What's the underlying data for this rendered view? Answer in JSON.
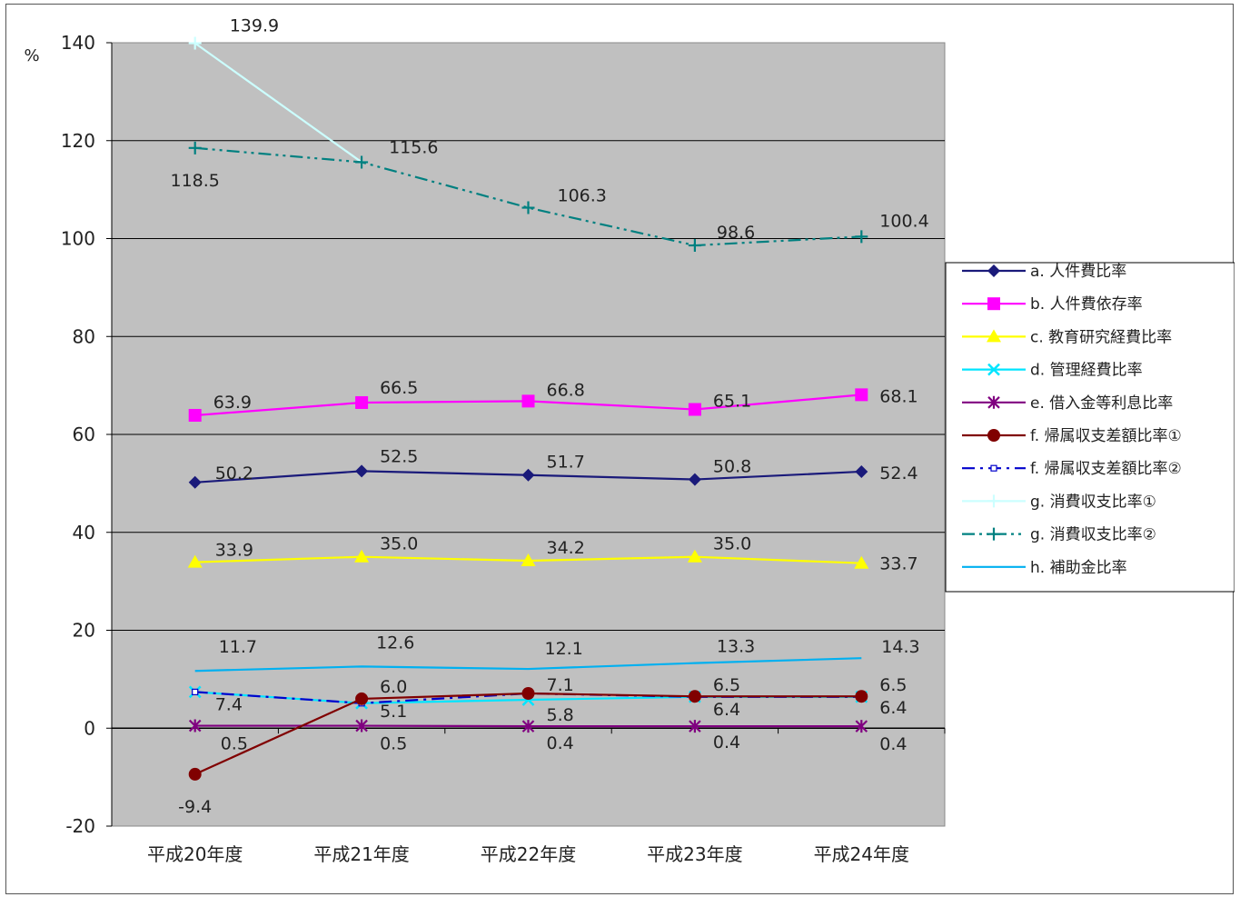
{
  "chart_data": {
    "type": "line",
    "unit_label": "%",
    "categories": [
      "平成20年度",
      "平成21年度",
      "平成22年度",
      "平成23年度",
      "平成24年度"
    ],
    "ylim": [
      -20,
      140
    ],
    "yticks": [
      140,
      120,
      100,
      80,
      60,
      40,
      20,
      0,
      -20
    ],
    "grid": true,
    "legend_position": "right",
    "series": [
      {
        "name": "a. 人件費比率",
        "color": "#1a1a7a",
        "marker": "diamond",
        "dash": "solid",
        "values": [
          50.2,
          52.5,
          51.7,
          50.8,
          52.4
        ],
        "labels": [
          "50.2",
          "52.5",
          "51.7",
          "50.8",
          "52.4"
        ]
      },
      {
        "name": "b. 人件費依存率",
        "color": "#ff00ff",
        "marker": "square",
        "dash": "solid",
        "values": [
          63.9,
          66.5,
          66.8,
          65.1,
          68.1
        ],
        "labels": [
          "63.9",
          "66.5",
          "66.8",
          "65.1",
          "68.1"
        ]
      },
      {
        "name": "c. 教育研究経費比率",
        "color": "#ffff00",
        "marker": "triangle",
        "dash": "solid",
        "values": [
          33.9,
          35.0,
          34.2,
          35.0,
          33.7
        ],
        "labels": [
          "33.9",
          "35.0",
          "34.2",
          "35.0",
          "33.7"
        ]
      },
      {
        "name": "d. 管理経費比率",
        "color": "#00e5ff",
        "marker": "x",
        "dash": "solid",
        "values": [
          7.4,
          5.1,
          5.8,
          6.4,
          6.4
        ],
        "labels": [
          "7.4",
          "5.1",
          "5.8",
          "6.4",
          "6.4"
        ]
      },
      {
        "name": "e. 借入金等利息比率",
        "color": "#800080",
        "marker": "star",
        "dash": "solid",
        "values": [
          0.5,
          0.5,
          0.4,
          0.4,
          0.4
        ],
        "labels": [
          "0.5",
          "0.5",
          "0.4",
          "0.4",
          "0.4"
        ]
      },
      {
        "name": "f. 帰属収支差額比率①",
        "color": "#800000",
        "marker": "circle",
        "dash": "solid",
        "values": [
          -9.4,
          6.0,
          7.1,
          6.5,
          6.5
        ],
        "labels": [
          "-9.4",
          "6.0",
          "7.1",
          "6.5",
          "6.5"
        ]
      },
      {
        "name": "f. 帰属収支差額比率②",
        "color": "#0000cc",
        "marker": "smallsquare",
        "dash": "dashdot",
        "values": [
          7.4,
          5.1,
          7.1,
          6.4,
          6.4
        ],
        "labels": [
          "",
          "",
          "",
          "",
          ""
        ]
      },
      {
        "name": "g. 消費収支比率①",
        "color": "#ccffff",
        "marker": "plus",
        "dash": "solid",
        "values": [
          139.9,
          115.6,
          null,
          null,
          null
        ],
        "labels": [
          "139.9",
          "",
          "",
          "",
          ""
        ]
      },
      {
        "name": "g. 消費収支比率②",
        "color": "#008080",
        "marker": "plus",
        "dash": "dashdotdot",
        "values": [
          118.5,
          115.6,
          106.3,
          98.6,
          100.4
        ],
        "labels": [
          "118.5",
          "115.6",
          "106.3",
          "98.6",
          "100.4"
        ]
      },
      {
        "name": "h. 補助金比率",
        "color": "#00b0f0",
        "marker": "none",
        "dash": "solid",
        "values": [
          11.7,
          12.6,
          12.1,
          13.3,
          14.3
        ],
        "labels": [
          "11.7",
          "12.6",
          "12.1",
          "13.3",
          "14.3"
        ]
      }
    ]
  }
}
